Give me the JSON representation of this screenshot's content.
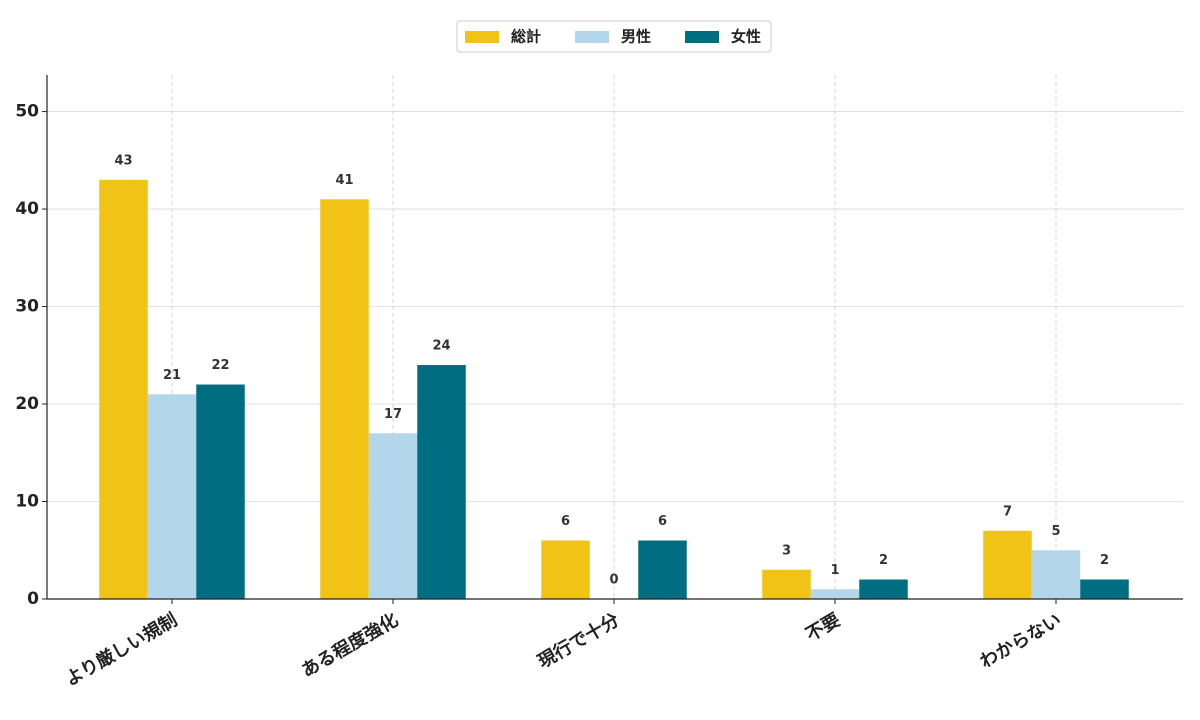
{
  "chart_data": {
    "type": "bar",
    "categories": [
      "より厳しい規制",
      "ある程度強化",
      "現行で十分",
      "不要",
      "わからない"
    ],
    "series": [
      {
        "name": "総計",
        "color": "#f1c317",
        "values": [
          43,
          41,
          6,
          3,
          7
        ]
      },
      {
        "name": "男性",
        "color": "#b3d6ea",
        "values": [
          21,
          17,
          0,
          1,
          5
        ]
      },
      {
        "name": "女性",
        "color": "#006e80",
        "values": [
          22,
          24,
          6,
          2,
          2
        ]
      }
    ],
    "ylim": [
      0,
      53.75
    ],
    "yticks": [
      0,
      10,
      20,
      30,
      40,
      50
    ],
    "grid": true,
    "legend": "top"
  }
}
